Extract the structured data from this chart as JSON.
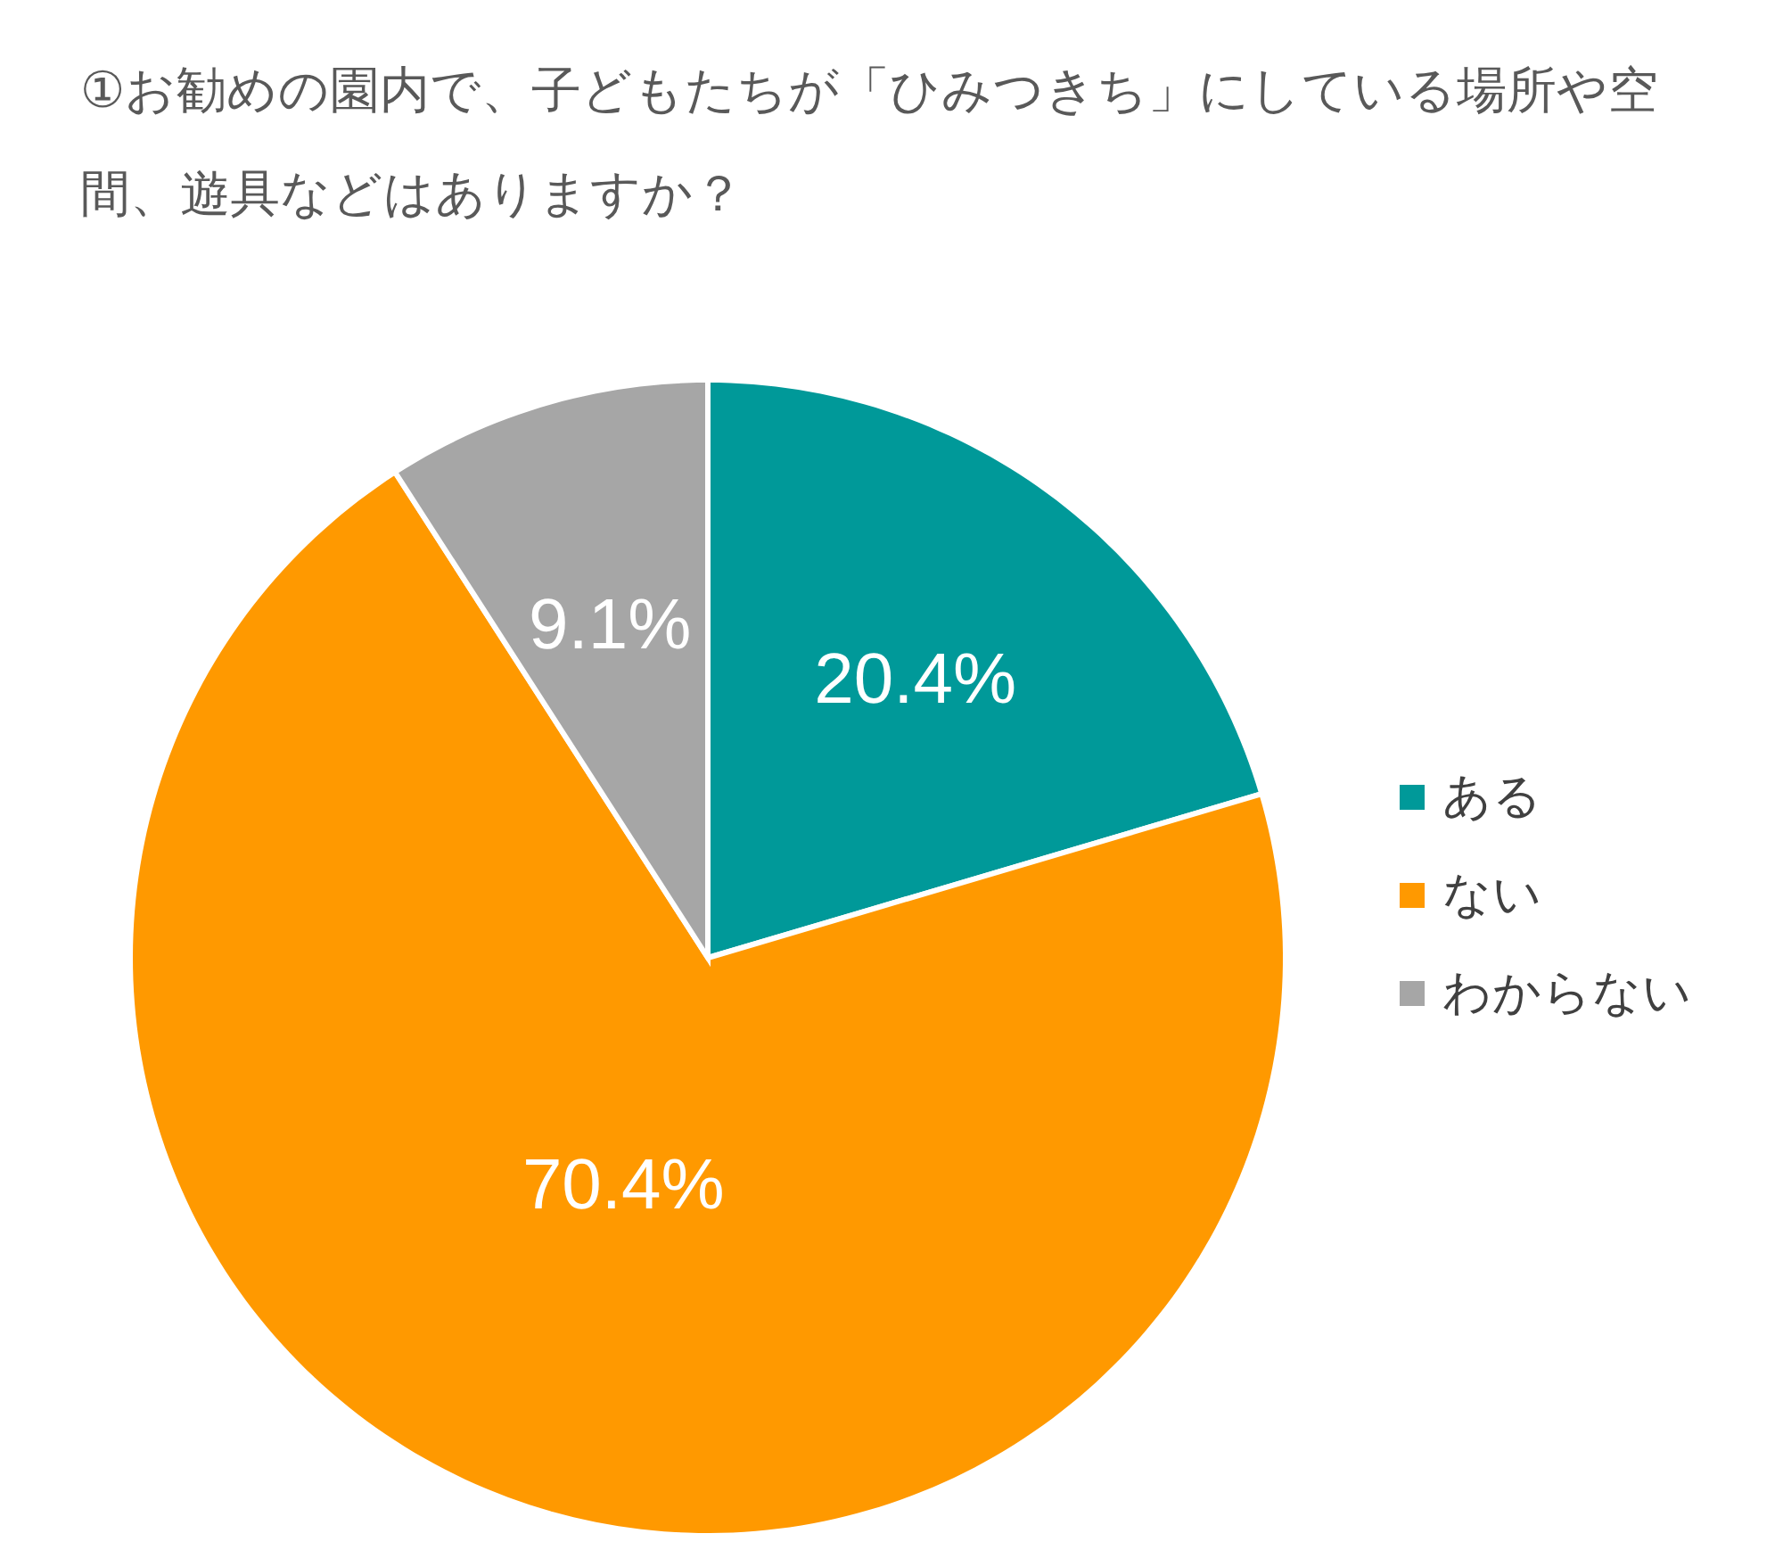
{
  "chart_data": {
    "type": "pie",
    "title": "①お勧めの園内で、子どもたちが「ひみつきち」にしている場所や空間、遊具などはありますか？",
    "categories": [
      "ある",
      "ない",
      "わからない"
    ],
    "values": [
      20.4,
      70.4,
      9.1
    ],
    "colors": [
      "#009999",
      "#ff9900",
      "#a6a6a6"
    ],
    "value_labels": [
      "20.4%",
      "70.4%",
      "9.1%"
    ],
    "legend": "right"
  }
}
